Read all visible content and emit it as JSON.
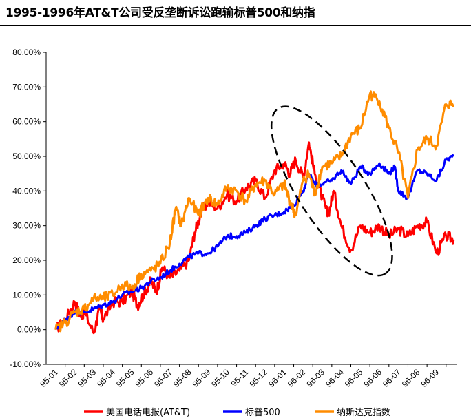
{
  "title": "1995-1996年AT&T公司受反垄断诉讼跑输标普500和纳指",
  "chart_data": {
    "type": "line",
    "title": "1995-1996年AT&T公司受反垄断诉讼跑输标普500和纳指",
    "xlabel": "",
    "ylabel": "",
    "ylim": [
      -10,
      80
    ],
    "yticks": [
      "-10.00%",
      "0.00%",
      "10.00%",
      "20.00%",
      "30.00%",
      "40.00%",
      "50.00%",
      "60.00%",
      "70.00%",
      "80.00%"
    ],
    "categories": [
      "95-01",
      "95-02",
      "95-03",
      "95-04",
      "95-05",
      "95-06",
      "95-07",
      "95-08",
      "95-09",
      "95-10",
      "95-11",
      "95-12",
      "96-01",
      "96-02",
      "96-03",
      "96-04",
      "96-05",
      "96-06",
      "96-07",
      "96-08",
      "96-09"
    ],
    "legend_position": "bottom",
    "series": [
      {
        "name": "美国电话电报(AT&T)",
        "color": "#ff0000",
        "x": [
          0,
          0.5,
          1,
          1.3,
          1.5,
          2,
          2.3,
          2.5,
          3,
          3.5,
          4,
          4.3,
          4.6,
          5,
          5.3,
          5.6,
          6,
          6.5,
          7,
          7.3,
          7.6,
          8,
          8.5,
          9,
          9.5,
          10,
          10.5,
          11,
          11.5,
          12,
          12.3,
          12.6,
          13,
          13.3,
          13.6,
          14,
          14.3,
          14.6,
          15,
          15.5,
          16,
          16.5,
          17,
          17.5,
          18,
          18.5,
          19,
          19.5,
          20,
          20.5,
          20.9
        ],
        "values": [
          0,
          3,
          8,
          4,
          5,
          -1,
          6,
          3,
          8,
          8,
          11,
          7,
          10,
          14,
          11,
          18,
          15,
          17,
          20,
          28,
          33,
          37,
          35,
          39,
          37,
          41,
          43,
          38,
          46,
          48,
          45,
          49,
          44,
          54,
          45,
          38,
          33,
          40,
          30,
          23,
          30,
          28,
          30,
          27,
          29,
          27,
          30,
          31,
          22,
          27,
          26
        ]
      },
      {
        "name": "标普500",
        "color": "#0000ff",
        "x": [
          0,
          0.5,
          1,
          1.5,
          2,
          2.5,
          3,
          3.5,
          4,
          4.5,
          5,
          5.5,
          6,
          6.5,
          7,
          7.5,
          8,
          8.5,
          9,
          9.5,
          10,
          10.5,
          11,
          11.5,
          12,
          12.5,
          13,
          13.3,
          13.6,
          14,
          14.5,
          15,
          15.5,
          16,
          16.5,
          17,
          17.5,
          17.8,
          18,
          18.5,
          19,
          19.5,
          20,
          20.5,
          20.9
        ],
        "values": [
          0,
          3,
          5,
          5,
          6,
          7,
          8,
          10,
          11,
          12,
          14,
          15,
          17,
          19,
          21,
          22,
          22,
          24,
          27,
          27,
          28,
          30,
          32,
          33,
          34,
          36,
          40,
          45,
          42,
          42,
          43,
          46,
          42,
          47,
          45,
          48,
          45,
          47,
          40,
          38,
          46,
          45,
          43,
          49,
          50
        ]
      },
      {
        "name": "纳斯达克指数",
        "color": "#ff8c00",
        "x": [
          0,
          0.5,
          1,
          1.5,
          2,
          2.5,
          3,
          3.5,
          4,
          4.5,
          5,
          5.5,
          6,
          6.3,
          6.6,
          7,
          7.5,
          8,
          8.5,
          9,
          9.5,
          10,
          10.5,
          11,
          11.5,
          12,
          12.3,
          12.6,
          13,
          13.3,
          13.6,
          14,
          14.5,
          15,
          15.5,
          16,
          16.5,
          17,
          17.5,
          18,
          18.5,
          19,
          19.5,
          20,
          20.5,
          20.9
        ],
        "values": [
          0,
          2,
          5,
          6,
          9,
          9,
          10,
          13,
          12,
          16,
          17,
          19,
          25,
          35,
          30,
          38,
          33,
          38,
          36,
          41,
          40,
          37,
          42,
          43,
          39,
          42,
          37,
          33,
          43,
          45,
          39,
          47,
          48,
          50,
          56,
          58,
          68,
          66,
          58,
          51,
          38,
          52,
          55,
          53,
          65,
          65
        ]
      }
    ],
    "annotation": "dashed ellipse around 96-01 to 96-05 highlighting AT&T decline"
  }
}
